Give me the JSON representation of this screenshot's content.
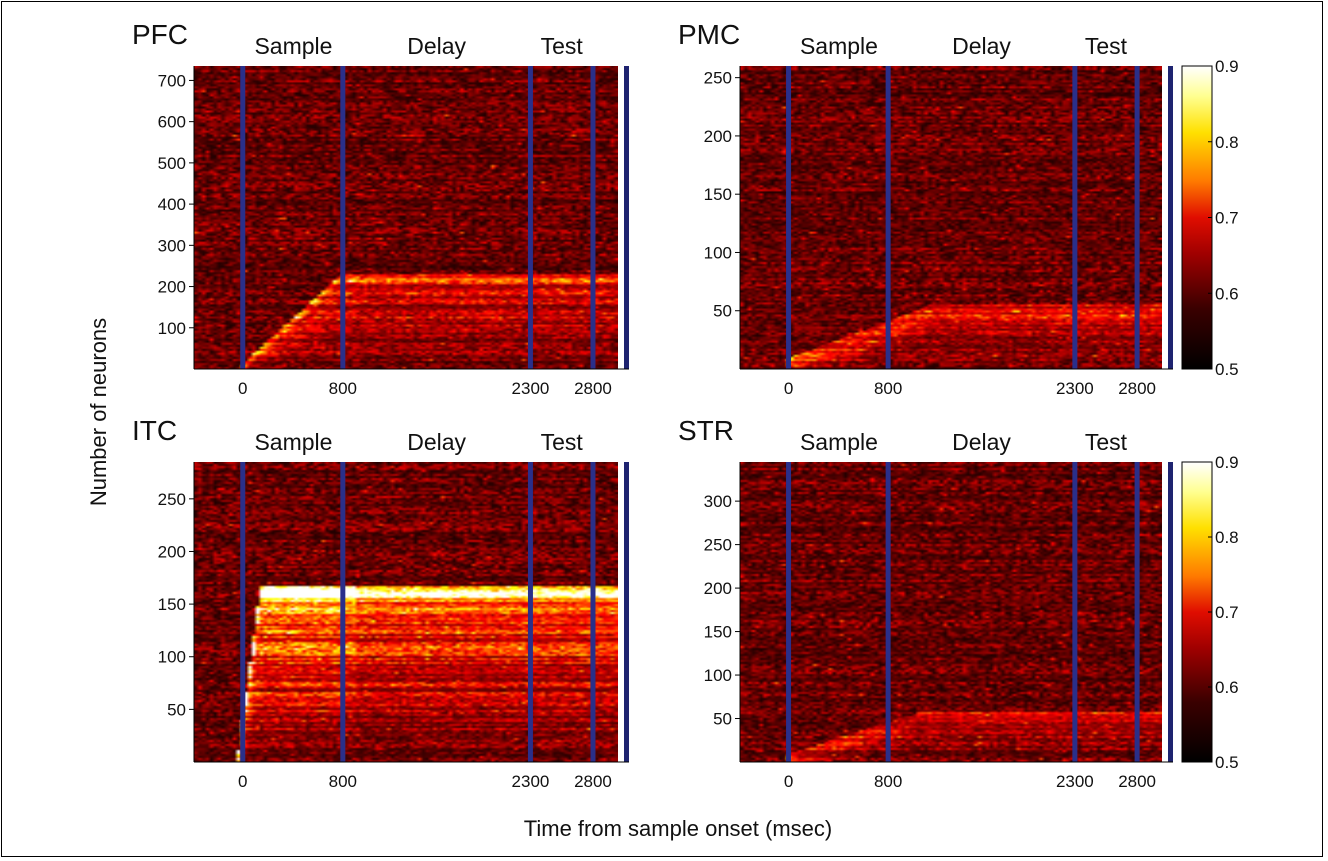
{
  "figure": {
    "ylabel": "Number of neurons",
    "xlabel": "Time from sample onset (msec)"
  },
  "chart_data": {
    "type": "heatmap",
    "xlabel": "Time from sample onset (msec)",
    "ylabel": "Number of neurons",
    "x_ticks": [
      0,
      800,
      2300,
      2800
    ],
    "epochs": [
      "Sample",
      "Delay",
      "Test"
    ],
    "event_lines_ms": [
      0,
      800,
      2300,
      2800
    ],
    "colormap": "hot",
    "colorbar": {
      "min": 0.5,
      "max": 0.9,
      "ticks": [
        0.5,
        0.6,
        0.7,
        0.8,
        0.9
      ]
    },
    "panels": [
      {
        "region": "PFC",
        "ylim": [
          0,
          735
        ],
        "y_ticks": [
          100,
          200,
          300,
          400,
          500,
          600,
          700
        ],
        "ridge": {
          "start_ms": -20,
          "slope_ms": 800,
          "max_y": 220
        },
        "intensity": 0.6,
        "has_colorbar": false
      },
      {
        "region": "PMC",
        "ylim": [
          0,
          260
        ],
        "y_ticks": [
          50,
          100,
          150,
          200,
          250
        ],
        "ridge": {
          "start_ms": -30,
          "slope_ms": 1200,
          "max_y": 48
        },
        "intensity": 0.4,
        "has_colorbar": true
      },
      {
        "region": "ITC",
        "ylim": [
          0,
          285
        ],
        "y_ticks": [
          50,
          100,
          150,
          200,
          250
        ],
        "ridge": {
          "start_ms": -40,
          "slope_ms": 180,
          "max_y": 160
        },
        "intensity": 1.0,
        "has_colorbar": false
      },
      {
        "region": "STR",
        "ylim": [
          0,
          345
        ],
        "y_ticks": [
          50,
          100,
          150,
          200,
          250,
          300
        ],
        "ridge": {
          "start_ms": -30,
          "slope_ms": 1100,
          "max_y": 50
        },
        "intensity": 0.35,
        "has_colorbar": true
      }
    ]
  }
}
